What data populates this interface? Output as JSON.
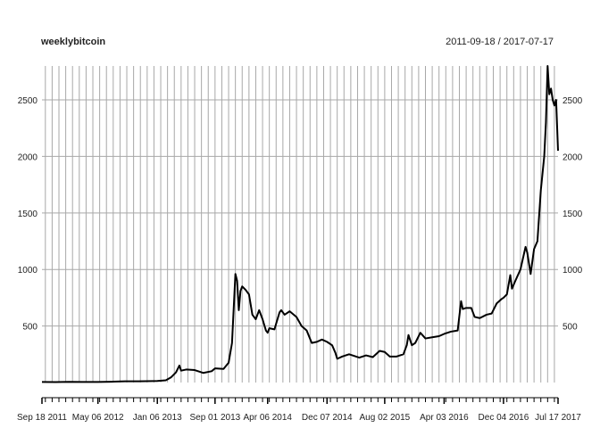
{
  "chart_data": {
    "type": "line",
    "title": "weeklybitcoin",
    "date_range": "2011-09-18 / 2017-07-17",
    "xlabel": "",
    "ylabel": "",
    "x_start": "2011-09-18",
    "x_end": "2017-07-17",
    "x_tick_labels": [
      {
        "date": "2011-09-18",
        "label": "Sep 18 2011"
      },
      {
        "date": "2012-05-06",
        "label": "May 06 2012"
      },
      {
        "date": "2013-01-06",
        "label": "Jan 06 2013"
      },
      {
        "date": "2013-09-01",
        "label": "Sep 01 2013"
      },
      {
        "date": "2014-04-06",
        "label": "Apr 06 2014"
      },
      {
        "date": "2014-12-07",
        "label": "Dec 07 2014"
      },
      {
        "date": "2015-08-02",
        "label": "Aug 02 2015"
      },
      {
        "date": "2016-04-03",
        "label": "Apr 03 2016"
      },
      {
        "date": "2016-12-04",
        "label": "Dec 04 2016"
      },
      {
        "date": "2017-07-17",
        "label": "Jul 17 2017"
      }
    ],
    "y_ticks": [
      500,
      1000,
      1500,
      2000,
      2500
    ],
    "ylim": [
      0,
      2800
    ],
    "grid": true,
    "axis_labels_right": true,
    "line_color": "#000000",
    "grid_color": "#a8a8a8",
    "series": [
      {
        "x": [
          "2011-09-18",
          "2011-11-13",
          "2012-01-08",
          "2012-03-04",
          "2012-05-06",
          "2012-07-01",
          "2012-08-26",
          "2012-10-21",
          "2012-12-16",
          "2013-01-06",
          "2013-02-10",
          "2013-03-03",
          "2013-03-24",
          "2013-04-07",
          "2013-04-14",
          "2013-05-05",
          "2013-06-09",
          "2013-07-14",
          "2013-08-18",
          "2013-09-01",
          "2013-10-06",
          "2013-10-27",
          "2013-11-10",
          "2013-11-24",
          "2013-12-01",
          "2013-12-08",
          "2013-12-15",
          "2013-12-22",
          "2014-01-05",
          "2014-01-19",
          "2014-02-02",
          "2014-02-16",
          "2014-03-02",
          "2014-03-16",
          "2014-03-30",
          "2014-04-06",
          "2014-04-13",
          "2014-05-04",
          "2014-05-25",
          "2014-06-01",
          "2014-06-15",
          "2014-07-06",
          "2014-08-03",
          "2014-08-24",
          "2014-09-14",
          "2014-10-05",
          "2014-10-26",
          "2014-11-16",
          "2014-12-07",
          "2014-12-28",
          "2015-01-11",
          "2015-01-18",
          "2015-02-08",
          "2015-03-08",
          "2015-03-22",
          "2015-04-19",
          "2015-05-17",
          "2015-06-14",
          "2015-07-12",
          "2015-08-02",
          "2015-08-23",
          "2015-09-20",
          "2015-10-18",
          "2015-11-01",
          "2015-11-08",
          "2015-11-22",
          "2015-12-06",
          "2015-12-27",
          "2016-01-17",
          "2016-02-14",
          "2016-03-13",
          "2016-04-03",
          "2016-05-01",
          "2016-05-29",
          "2016-06-12",
          "2016-06-19",
          "2016-07-03",
          "2016-07-24",
          "2016-08-07",
          "2016-08-28",
          "2016-09-25",
          "2016-10-16",
          "2016-11-06",
          "2016-11-27",
          "2016-12-04",
          "2016-12-18",
          "2017-01-01",
          "2017-01-08",
          "2017-01-22",
          "2017-02-12",
          "2017-03-05",
          "2017-03-12",
          "2017-03-26",
          "2017-04-09",
          "2017-04-23",
          "2017-05-07",
          "2017-05-21",
          "2017-05-28",
          "2017-06-04",
          "2017-06-11",
          "2017-06-18",
          "2017-06-25",
          "2017-07-02",
          "2017-07-09",
          "2017-07-17"
        ],
        "values": [
          5,
          4,
          6,
          5,
          5,
          7,
          11,
          11,
          13,
          14,
          20,
          45,
          90,
          150,
          105,
          115,
          110,
          85,
          100,
          125,
          120,
          175,
          350,
          960,
          900,
          640,
          810,
          850,
          820,
          780,
          600,
          560,
          640,
          560,
          460,
          440,
          480,
          470,
          620,
          640,
          600,
          630,
          580,
          500,
          460,
          350,
          360,
          380,
          360,
          330,
          260,
          210,
          230,
          250,
          240,
          220,
          240,
          225,
          280,
          270,
          230,
          230,
          250,
          330,
          420,
          330,
          350,
          440,
          390,
          400,
          410,
          430,
          450,
          460,
          720,
          650,
          660,
          660,
          580,
          570,
          600,
          610,
          700,
          740,
          750,
          780,
          950,
          830,
          900,
          1000,
          1200,
          1150,
          960,
          1180,
          1250,
          1700,
          2000,
          2300,
          2800,
          2550,
          2600,
          2500,
          2450,
          2500,
          2050
        ]
      }
    ]
  }
}
